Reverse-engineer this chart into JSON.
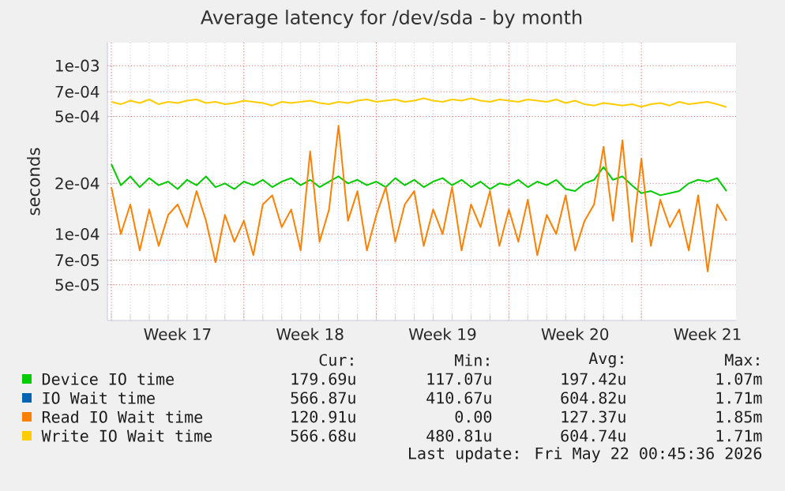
{
  "chart_data": {
    "type": "line",
    "title": "Average latency for /dev/sda - by month",
    "ylabel": "seconds",
    "log": "y",
    "grid": true,
    "legend": "bottom",
    "xlim": [
      "2026-04-19T19:00",
      "2026-05-23T00:00"
    ],
    "xticks": [
      {
        "value": "2026-04-20T00:00",
        "label": null
      },
      {
        "value": "2026-04-23T12:00",
        "label": "Week 17"
      },
      {
        "value": "2026-04-27T00:00",
        "label": null
      },
      {
        "value": "2026-04-30T12:00",
        "label": "Week 18"
      },
      {
        "value": "2026-05-04T00:00",
        "label": null
      },
      {
        "value": "2026-05-07T12:00",
        "label": "Week 19"
      },
      {
        "value": "2026-05-11T00:00",
        "label": null
      },
      {
        "value": "2026-05-14T12:00",
        "label": "Week 20"
      },
      {
        "value": "2026-05-18T00:00",
        "label": null
      },
      {
        "value": "2026-05-21T12:00",
        "label": "Week 21"
      }
    ],
    "ylim": [
      3.07e-05,
      0.00137
    ],
    "yticks": [
      {
        "value": 5e-05,
        "label": "5e-05"
      },
      {
        "value": 7e-05,
        "label": "7e-05"
      },
      {
        "value": 0.0001,
        "label": "1e-04"
      },
      {
        "value": 0.0002,
        "label": "2e-04"
      },
      {
        "value": 0.0005,
        "label": "5e-04"
      },
      {
        "value": 0.0007,
        "label": "7e-04"
      },
      {
        "value": 0.001,
        "label": "1e-03"
      }
    ],
    "x": [
      "2026-04-20T00:00",
      "2026-04-20T12:00",
      "2026-04-21T00:00",
      "2026-04-21T12:00",
      "2026-04-22T00:00",
      "2026-04-22T12:00",
      "2026-04-23T00:00",
      "2026-04-23T12:00",
      "2026-04-24T00:00",
      "2026-04-24T12:00",
      "2026-04-25T00:00",
      "2026-04-25T12:00",
      "2026-04-26T00:00",
      "2026-04-26T12:00",
      "2026-04-27T00:00",
      "2026-04-27T12:00",
      "2026-04-28T00:00",
      "2026-04-28T12:00",
      "2026-04-29T00:00",
      "2026-04-29T12:00",
      "2026-04-30T00:00",
      "2026-04-30T12:00",
      "2026-05-01T00:00",
      "2026-05-01T12:00",
      "2026-05-02T00:00",
      "2026-05-02T12:00",
      "2026-05-03T00:00",
      "2026-05-03T12:00",
      "2026-05-04T00:00",
      "2026-05-04T12:00",
      "2026-05-05T00:00",
      "2026-05-05T12:00",
      "2026-05-06T00:00",
      "2026-05-06T12:00",
      "2026-05-07T00:00",
      "2026-05-07T12:00",
      "2026-05-08T00:00",
      "2026-05-08T12:00",
      "2026-05-09T00:00",
      "2026-05-09T12:00",
      "2026-05-10T00:00",
      "2026-05-10T12:00",
      "2026-05-11T00:00",
      "2026-05-11T12:00",
      "2026-05-12T00:00",
      "2026-05-12T12:00",
      "2026-05-13T00:00",
      "2026-05-13T12:00",
      "2026-05-14T00:00",
      "2026-05-14T12:00",
      "2026-05-15T00:00",
      "2026-05-15T12:00",
      "2026-05-16T00:00",
      "2026-05-16T12:00",
      "2026-05-17T00:00",
      "2026-05-17T12:00",
      "2026-05-18T00:00",
      "2026-05-18T12:00",
      "2026-05-19T00:00",
      "2026-05-19T12:00",
      "2026-05-20T00:00",
      "2026-05-20T12:00",
      "2026-05-21T00:00",
      "2026-05-21T12:00",
      "2026-05-22T00:00",
      "2026-05-22T12:00"
    ],
    "series": [
      {
        "name": "Device IO time",
        "color": "#00cc00",
        "values": [
          0.00026,
          0.000195,
          0.00022,
          0.00019,
          0.000215,
          0.000195,
          0.000205,
          0.000185,
          0.00021,
          0.000195,
          0.00022,
          0.00019,
          0.0002,
          0.000185,
          0.000205,
          0.000195,
          0.00021,
          0.00019,
          0.000205,
          0.000215,
          0.000195,
          0.00021,
          0.00019,
          0.000205,
          0.00022,
          0.0002,
          0.00021,
          0.000195,
          0.000205,
          0.00019,
          0.000215,
          0.000195,
          0.00021,
          0.00019,
          0.000205,
          0.000215,
          0.000195,
          0.00021,
          0.00019,
          0.000205,
          0.000185,
          0.0002,
          0.000195,
          0.00021,
          0.00019,
          0.000205,
          0.000195,
          0.00021,
          0.000185,
          0.00018,
          0.0002,
          0.00021,
          0.00025,
          0.00021,
          0.00022,
          0.000195,
          0.000175,
          0.00018,
          0.00017,
          0.000175,
          0.00018,
          0.0002,
          0.00021,
          0.000205,
          0.000215,
          0.00018
        ]
      },
      {
        "name": "IO Wait time",
        "color": "#0066b3",
        "values": [
          null,
          null,
          null,
          null,
          null,
          null,
          null,
          null,
          null,
          null,
          null,
          null,
          null,
          null,
          null,
          null,
          null,
          null,
          null,
          null,
          null,
          null,
          null,
          null,
          null,
          null,
          null,
          null,
          null,
          null,
          null,
          null,
          null,
          null,
          null,
          null,
          null,
          null,
          null,
          null,
          null,
          null,
          null,
          null,
          null,
          null,
          null,
          null,
          null,
          null,
          null,
          null,
          null,
          null,
          null,
          null,
          null,
          null,
          null,
          null,
          null,
          null,
          null,
          null,
          null,
          null
        ]
      },
      {
        "name": "Read IO Wait time",
        "color": "#ff8000",
        "values": [
          0.00019,
          0.0001,
          0.00015,
          8e-05,
          0.00014,
          8.5e-05,
          0.00013,
          0.00015,
          0.00011,
          0.00018,
          0.00012,
          6.8e-05,
          0.00013,
          9e-05,
          0.00012,
          7.5e-05,
          0.00015,
          0.00017,
          0.00011,
          0.00014,
          8e-05,
          0.00031,
          9e-05,
          0.00014,
          0.00044,
          0.00012,
          0.00018,
          8e-05,
          0.00013,
          0.00019,
          9e-05,
          0.00015,
          0.00018,
          8.5e-05,
          0.00014,
          0.0001,
          0.00019,
          8e-05,
          0.00015,
          0.00011,
          0.00018,
          8.5e-05,
          0.00014,
          9e-05,
          0.00016,
          7.5e-05,
          0.00013,
          0.0001,
          0.00017,
          8e-05,
          0.00012,
          0.00015,
          0.00033,
          0.00012,
          0.00036,
          9e-05,
          0.00028,
          8.5e-05,
          0.00016,
          0.00011,
          0.00014,
          8e-05,
          0.00017,
          6e-05,
          0.00015,
          0.00012
        ]
      },
      {
        "name": "Write IO Wait time",
        "color": "#ffcc00",
        "values": [
          0.00061,
          0.00059,
          0.00062,
          0.0006,
          0.00063,
          0.00059,
          0.00061,
          0.0006,
          0.00062,
          0.00063,
          0.0006,
          0.00061,
          0.00059,
          0.0006,
          0.00062,
          0.00061,
          0.0006,
          0.00058,
          0.00061,
          0.0006,
          0.00061,
          0.00062,
          0.0006,
          0.00059,
          0.00061,
          0.0006,
          0.00062,
          0.00063,
          0.00061,
          0.00062,
          0.00063,
          0.00061,
          0.00062,
          0.00064,
          0.00062,
          0.00061,
          0.00063,
          0.00062,
          0.00064,
          0.00062,
          0.00061,
          0.00063,
          0.00062,
          0.00061,
          0.00063,
          0.00062,
          0.00061,
          0.00063,
          0.0006,
          0.00062,
          0.00059,
          0.00058,
          0.0006,
          0.00059,
          0.00058,
          0.00059,
          0.00057,
          0.00059,
          0.0006,
          0.00058,
          0.00061,
          0.00059,
          0.0006,
          0.00061,
          0.00059,
          0.000567
        ]
      }
    ],
    "annotations": [
      "Cur:",
      "Min:",
      "Avg:",
      "Max:",
      "179.69u",
      "117.07u",
      "197.42u",
      "1.07m",
      "566.87u",
      "410.67u",
      "604.82u",
      "1.71m",
      "120.91u",
      "0.00",
      "127.37u",
      "1.85m",
      "566.68u",
      "480.81u",
      "604.74u",
      "1.71m",
      "Last update: Fri May 22 00:45:36 2026"
    ]
  }
}
